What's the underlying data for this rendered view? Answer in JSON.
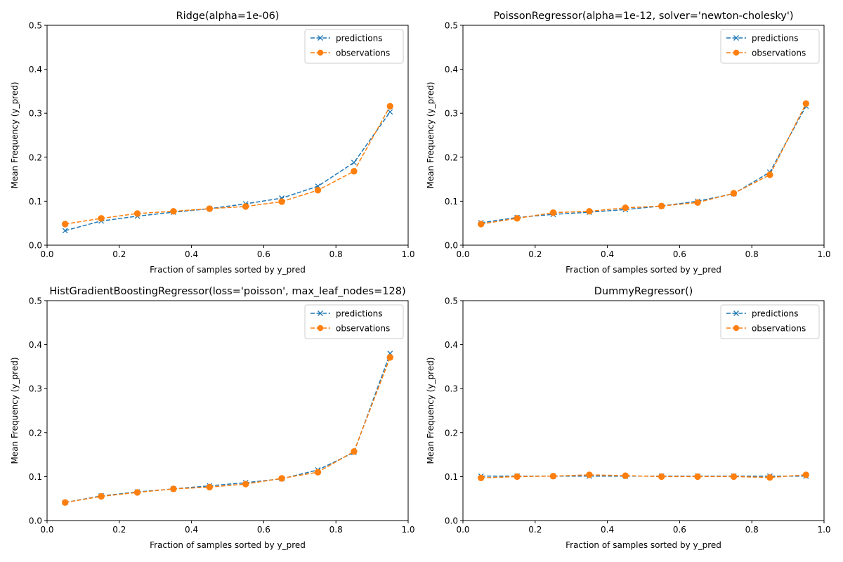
{
  "colors": {
    "predictions": "#1f77b4",
    "observations": "#ff7f0e",
    "axes": "#000000",
    "background": "#ffffff"
  },
  "chart_data": [
    {
      "type": "line",
      "title": "Ridge(alpha=1e-06)",
      "xlabel": "Fraction of samples sorted by y_pred",
      "ylabel": "Mean Frequency (y_pred)",
      "xlim": [
        0,
        1
      ],
      "ylim": [
        0,
        0.5
      ],
      "xticks": [
        "0.0",
        "0.2",
        "0.4",
        "0.6",
        "0.8",
        "1.0"
      ],
      "yticks": [
        "0.0",
        "0.1",
        "0.2",
        "0.3",
        "0.4",
        "0.5"
      ],
      "legend": "top-right",
      "grid": false,
      "x": [
        0.05,
        0.15,
        0.25,
        0.35,
        0.45,
        0.55,
        0.65,
        0.75,
        0.85,
        0.95
      ],
      "series": [
        {
          "name": "predictions",
          "marker": "x",
          "values": [
            0.033,
            0.055,
            0.066,
            0.075,
            0.083,
            0.094,
            0.107,
            0.134,
            0.188,
            0.303
          ]
        },
        {
          "name": "observations",
          "marker": "o",
          "values": [
            0.048,
            0.061,
            0.072,
            0.077,
            0.083,
            0.088,
            0.099,
            0.125,
            0.168,
            0.316
          ]
        }
      ]
    },
    {
      "type": "line",
      "title": "PoissonRegressor(alpha=1e-12, solver='newton-cholesky')",
      "xlabel": "Fraction of samples sorted by y_pred",
      "ylabel": "Mean Frequency (y_pred)",
      "xlim": [
        0,
        1
      ],
      "ylim": [
        0,
        0.5
      ],
      "xticks": [
        "0.0",
        "0.2",
        "0.4",
        "0.6",
        "0.8",
        "1.0"
      ],
      "yticks": [
        "0.0",
        "0.1",
        "0.2",
        "0.3",
        "0.4",
        "0.5"
      ],
      "legend": "top-right",
      "grid": false,
      "x": [
        0.05,
        0.15,
        0.25,
        0.35,
        0.45,
        0.55,
        0.65,
        0.75,
        0.85,
        0.95
      ],
      "series": [
        {
          "name": "predictions",
          "marker": "x",
          "values": [
            0.051,
            0.063,
            0.07,
            0.075,
            0.081,
            0.089,
            0.1,
            0.117,
            0.166,
            0.316
          ]
        },
        {
          "name": "observations",
          "marker": "o",
          "values": [
            0.048,
            0.061,
            0.074,
            0.077,
            0.085,
            0.089,
            0.097,
            0.118,
            0.16,
            0.322
          ]
        }
      ]
    },
    {
      "type": "line",
      "title": "HistGradientBoostingRegressor(loss='poisson', max_leaf_nodes=128)",
      "xlabel": "Fraction of samples sorted by y_pred",
      "ylabel": "Mean Frequency (y_pred)",
      "xlim": [
        0,
        1
      ],
      "ylim": [
        0,
        0.5
      ],
      "xticks": [
        "0.0",
        "0.2",
        "0.4",
        "0.6",
        "0.8",
        "1.0"
      ],
      "yticks": [
        "0.0",
        "0.1",
        "0.2",
        "0.3",
        "0.4",
        "0.5"
      ],
      "legend": "top-right",
      "grid": false,
      "x": [
        0.05,
        0.15,
        0.25,
        0.35,
        0.45,
        0.55,
        0.65,
        0.75,
        0.85,
        0.95
      ],
      "series": [
        {
          "name": "predictions",
          "marker": "x",
          "values": [
            0.041,
            0.056,
            0.065,
            0.072,
            0.079,
            0.086,
            0.095,
            0.115,
            0.155,
            0.38
          ]
        },
        {
          "name": "observations",
          "marker": "o",
          "values": [
            0.041,
            0.055,
            0.064,
            0.072,
            0.076,
            0.083,
            0.096,
            0.11,
            0.157,
            0.371
          ]
        }
      ]
    },
    {
      "type": "line",
      "title": "DummyRegressor()",
      "xlabel": "Fraction of samples sorted by y_pred",
      "ylabel": "Mean Frequency (y_pred)",
      "xlim": [
        0,
        1
      ],
      "ylim": [
        0,
        0.5
      ],
      "xticks": [
        "0.0",
        "0.2",
        "0.4",
        "0.6",
        "0.8",
        "1.0"
      ],
      "yticks": [
        "0.0",
        "0.1",
        "0.2",
        "0.3",
        "0.4",
        "0.5"
      ],
      "legend": "top-right",
      "grid": false,
      "x": [
        0.05,
        0.15,
        0.25,
        0.35,
        0.45,
        0.55,
        0.65,
        0.75,
        0.85,
        0.95
      ],
      "series": [
        {
          "name": "predictions",
          "marker": "x",
          "values": [
            0.101,
            0.101,
            0.101,
            0.101,
            0.101,
            0.101,
            0.101,
            0.101,
            0.101,
            0.101
          ]
        },
        {
          "name": "observations",
          "marker": "o",
          "values": [
            0.097,
            0.1,
            0.101,
            0.104,
            0.102,
            0.1,
            0.1,
            0.1,
            0.098,
            0.104
          ]
        }
      ]
    }
  ]
}
